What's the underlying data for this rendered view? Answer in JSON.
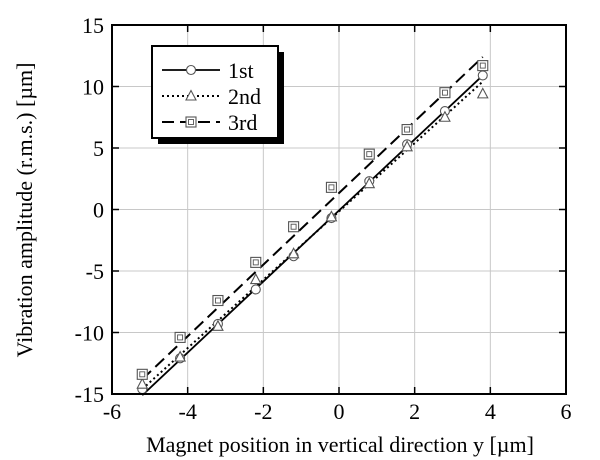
{
  "chart_data": {
    "type": "scatter",
    "title": "",
    "xlabel": "Magnet position in vertical direction y  [µm]",
    "ylabel": "Vibration amplitude (r.m.s.)  [µm]",
    "xlim": [
      -6,
      6
    ],
    "ylim": [
      -15,
      15
    ],
    "xticks": [
      -6,
      -4,
      -2,
      0,
      2,
      4,
      6
    ],
    "yticks": [
      -15,
      -10,
      -5,
      0,
      5,
      10,
      15
    ],
    "grid": true,
    "legend_position": "top-left",
    "series": [
      {
        "name": "1st",
        "marker": "circle",
        "line_style": "solid",
        "x": [
          -5.2,
          -4.2,
          -3.2,
          -2.2,
          -1.2,
          -0.2,
          0.8,
          1.8,
          2.8,
          3.8
        ],
        "y": [
          -14.6,
          -12.1,
          -9.3,
          -6.5,
          -3.8,
          -0.7,
          2.3,
          5.3,
          8.0,
          10.9
        ],
        "fit": {
          "x": [
            -5.2,
            3.8
          ],
          "y": [
            -15.1,
            10.9
          ]
        }
      },
      {
        "name": "2nd",
        "marker": "triangle",
        "line_style": "dotted",
        "x": [
          -5.2,
          -4.2,
          -3.2,
          -2.2,
          -1.2,
          -0.2,
          0.8,
          1.8,
          2.8,
          3.8
        ],
        "y": [
          -14.2,
          -12.0,
          -9.5,
          -5.7,
          -3.6,
          -0.6,
          2.1,
          5.1,
          7.5,
          9.4
        ],
        "fit": {
          "x": [
            -5.2,
            3.8
          ],
          "y": [
            -14.6,
            10.4
          ]
        }
      },
      {
        "name": "3rd",
        "marker": "square",
        "line_style": "dashed",
        "x": [
          -5.2,
          -4.2,
          -3.2,
          -2.2,
          -1.2,
          -0.2,
          0.8,
          1.8,
          2.8,
          3.8
        ],
        "y": [
          -13.4,
          -10.4,
          -7.4,
          -4.3,
          -1.4,
          1.8,
          4.5,
          6.5,
          9.5,
          11.7
        ],
        "fit": {
          "x": [
            -5.2,
            3.8
          ],
          "y": [
            -13.8,
            12.4
          ]
        }
      }
    ]
  }
}
